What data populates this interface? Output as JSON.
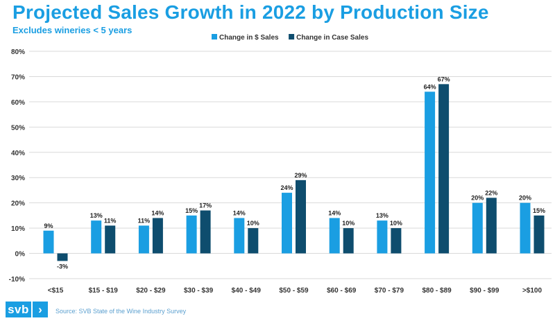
{
  "colors": {
    "series1": "#1a9ee2",
    "series2": "#0e4d6e",
    "title": "#1a9ee2",
    "grid": "#d9d9d9"
  },
  "chart_data": {
    "type": "bar",
    "title": "Projected Sales Growth in 2022 by Production Size",
    "subtitle": "Excludes wineries < 5 years",
    "xlabel": "",
    "ylabel": "",
    "ylim": [
      -10,
      80
    ],
    "yticks": [
      -10,
      0,
      10,
      20,
      30,
      40,
      50,
      60,
      70,
      80
    ],
    "ytick_labels": [
      "-10%",
      "0%",
      "10%",
      "20%",
      "30%",
      "40%",
      "50%",
      "60%",
      "70%",
      "80%"
    ],
    "legend_position": "top-center",
    "grid": true,
    "categories": [
      "<$15",
      "$15 - $19",
      "$20 - $29",
      "$30 - $39",
      "$40 - $49",
      "$50 - $59",
      "$60 - $69",
      "$70 - $79",
      "$80 - $89",
      "$90 - $99",
      ">$100"
    ],
    "series": [
      {
        "name": "Change in $ Sales",
        "values": [
          9,
          13,
          11,
          15,
          14,
          24,
          14,
          13,
          64,
          20,
          20
        ],
        "labels": [
          "9%",
          "13%",
          "11%",
          "15%",
          "14%",
          "24%",
          "14%",
          "13%",
          "64%",
          "20%",
          "20%"
        ]
      },
      {
        "name": "Change in Case Sales",
        "values": [
          -3,
          11,
          14,
          17,
          10,
          29,
          10,
          10,
          67,
          22,
          15
        ],
        "labels": [
          "-3%",
          "11%",
          "14%",
          "17%",
          "10%",
          "29%",
          "10%",
          "10%",
          "67%",
          "22%",
          "15%"
        ]
      }
    ]
  },
  "footer": {
    "logo_text": "svb",
    "logo_arrow": "›",
    "source": "Source: SVB State of the Wine Industry Survey"
  }
}
